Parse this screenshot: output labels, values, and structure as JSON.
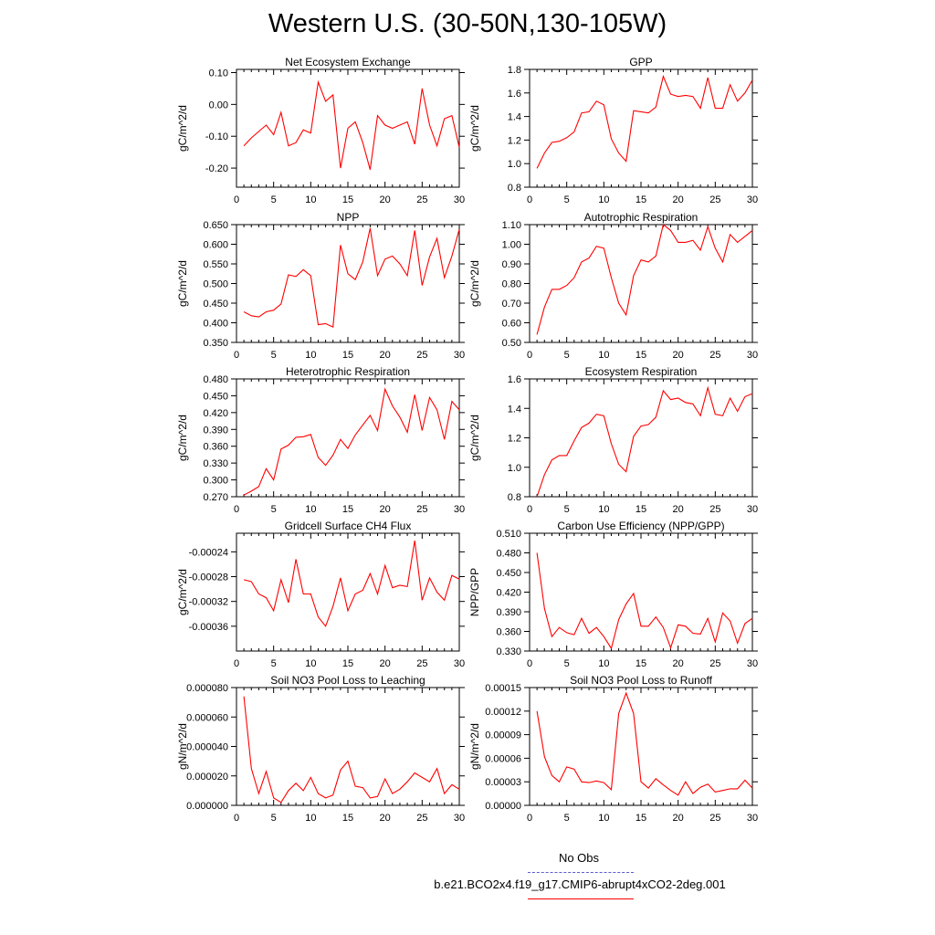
{
  "page": {
    "title": "Western U.S. (30-50N,130-105W)"
  },
  "legend": {
    "obs_label": "No Obs",
    "case_label": "b.e21.BCO2x4.f19_g17.CMIP6-abrupt4xCO2-2deg.001",
    "obs_color": "#5a5acd",
    "case_color": "#ff0000"
  },
  "chart_data": [
    {
      "type": "line",
      "title": "Net Ecosystem Exchange",
      "ylabel": "gC/m^2/d",
      "xlim": [
        0,
        30
      ],
      "ylim": [
        -0.26,
        0.11
      ],
      "yticks": [
        "0.10",
        "0.00",
        "-0.10",
        "-0.20"
      ],
      "xticks": [
        "0",
        "5",
        "10",
        "15",
        "20",
        "25",
        "30"
      ],
      "x": [
        1,
        2,
        3,
        4,
        5,
        6,
        7,
        8,
        9,
        10,
        11,
        12,
        13,
        14,
        15,
        16,
        17,
        18,
        19,
        20,
        21,
        22,
        23,
        24,
        25,
        26,
        27,
        28,
        29,
        30
      ],
      "series": [
        {
          "color": "#ff0000",
          "values": [
            -0.13,
            -0.105,
            -0.085,
            -0.065,
            -0.095,
            -0.025,
            -0.13,
            -0.12,
            -0.08,
            -0.09,
            0.07,
            0.01,
            0.03,
            -0.2,
            -0.075,
            -0.055,
            -0.12,
            -0.205,
            -0.035,
            -0.065,
            -0.075,
            -0.065,
            -0.055,
            -0.125,
            0.05,
            -0.065,
            -0.13,
            -0.045,
            -0.035,
            -0.135
          ]
        }
      ]
    },
    {
      "type": "line",
      "title": "GPP",
      "ylabel": "gC/m^2/d",
      "xlim": [
        0,
        30
      ],
      "ylim": [
        0.8,
        1.8
      ],
      "yticks": [
        "1.8",
        "1.6",
        "1.4",
        "1.2",
        "1.0",
        "0.8"
      ],
      "xticks": [
        "0",
        "5",
        "10",
        "15",
        "20",
        "25",
        "30"
      ],
      "x": [
        1,
        2,
        3,
        4,
        5,
        6,
        7,
        8,
        9,
        10,
        11,
        12,
        13,
        14,
        15,
        16,
        17,
        18,
        19,
        20,
        21,
        22,
        23,
        24,
        25,
        26,
        27,
        28,
        29,
        30
      ],
      "series": [
        {
          "color": "#ff0000",
          "values": [
            0.96,
            1.09,
            1.18,
            1.19,
            1.22,
            1.27,
            1.43,
            1.44,
            1.53,
            1.5,
            1.21,
            1.09,
            1.02,
            1.45,
            1.44,
            1.43,
            1.48,
            1.74,
            1.59,
            1.57,
            1.58,
            1.57,
            1.47,
            1.73,
            1.47,
            1.47,
            1.67,
            1.53,
            1.6,
            1.71
          ]
        }
      ]
    },
    {
      "type": "line",
      "title": "NPP",
      "ylabel": "gC/m^2/d",
      "xlim": [
        0,
        30
      ],
      "ylim": [
        0.35,
        0.65
      ],
      "yticks": [
        "0.650",
        "0.600",
        "0.550",
        "0.500",
        "0.450",
        "0.400",
        "0.350"
      ],
      "xticks": [
        "0",
        "5",
        "10",
        "15",
        "20",
        "25",
        "30"
      ],
      "x": [
        1,
        2,
        3,
        4,
        5,
        6,
        7,
        8,
        9,
        10,
        11,
        12,
        13,
        14,
        15,
        16,
        17,
        18,
        19,
        20,
        21,
        22,
        23,
        24,
        25,
        26,
        27,
        28,
        29,
        30
      ],
      "series": [
        {
          "color": "#ff0000",
          "values": [
            0.428,
            0.418,
            0.415,
            0.428,
            0.432,
            0.448,
            0.522,
            0.518,
            0.535,
            0.52,
            0.395,
            0.398,
            0.389,
            0.598,
            0.525,
            0.51,
            0.555,
            0.641,
            0.52,
            0.562,
            0.57,
            0.55,
            0.52,
            0.635,
            0.495,
            0.568,
            0.615,
            0.515,
            0.57,
            0.638
          ]
        }
      ]
    },
    {
      "type": "line",
      "title": "Autotrophic Respiration",
      "ylabel": "gC/m^2/d",
      "xlim": [
        0,
        30
      ],
      "ylim": [
        0.5,
        1.1
      ],
      "yticks": [
        "1.10",
        "1.00",
        "0.90",
        "0.80",
        "0.70",
        "0.60",
        "0.50"
      ],
      "xticks": [
        "0",
        "5",
        "10",
        "15",
        "20",
        "25",
        "30"
      ],
      "x": [
        1,
        2,
        3,
        4,
        5,
        6,
        7,
        8,
        9,
        10,
        11,
        12,
        13,
        14,
        15,
        16,
        17,
        18,
        19,
        20,
        21,
        22,
        23,
        24,
        25,
        26,
        27,
        28,
        29,
        30
      ],
      "series": [
        {
          "color": "#ff0000",
          "values": [
            0.54,
            0.68,
            0.77,
            0.77,
            0.79,
            0.83,
            0.91,
            0.93,
            0.99,
            0.98,
            0.83,
            0.7,
            0.64,
            0.84,
            0.92,
            0.91,
            0.94,
            1.1,
            1.07,
            1.01,
            1.01,
            1.02,
            0.97,
            1.09,
            0.98,
            0.91,
            1.05,
            1.01,
            1.04,
            1.07
          ]
        }
      ]
    },
    {
      "type": "line",
      "title": "Heterotrophic Respiration",
      "ylabel": "gC/m^2/d",
      "xlim": [
        0,
        30
      ],
      "ylim": [
        0.27,
        0.48
      ],
      "yticks": [
        "0.480",
        "0.450",
        "0.420",
        "0.390",
        "0.360",
        "0.330",
        "0.300",
        "0.270"
      ],
      "xticks": [
        "0",
        "5",
        "10",
        "15",
        "20",
        "25",
        "30"
      ],
      "x": [
        1,
        2,
        3,
        4,
        5,
        6,
        7,
        8,
        9,
        10,
        11,
        12,
        13,
        14,
        15,
        16,
        17,
        18,
        19,
        20,
        21,
        22,
        23,
        24,
        25,
        26,
        27,
        28,
        29,
        30
      ],
      "series": [
        {
          "color": "#ff0000",
          "values": [
            0.273,
            0.28,
            0.288,
            0.32,
            0.3,
            0.355,
            0.362,
            0.376,
            0.377,
            0.381,
            0.34,
            0.326,
            0.344,
            0.372,
            0.356,
            0.38,
            0.398,
            0.415,
            0.388,
            0.462,
            0.432,
            0.412,
            0.385,
            0.452,
            0.388,
            0.447,
            0.425,
            0.372,
            0.44,
            0.425
          ]
        }
      ]
    },
    {
      "type": "line",
      "title": "Ecosystem Respiration",
      "ylabel": "gC/m^2/d",
      "xlim": [
        0,
        30
      ],
      "ylim": [
        0.8,
        1.6
      ],
      "yticks": [
        "1.6",
        "1.4",
        "1.2",
        "1.0",
        "0.8"
      ],
      "xticks": [
        "0",
        "5",
        "10",
        "15",
        "20",
        "25",
        "30"
      ],
      "x": [
        1,
        2,
        3,
        4,
        5,
        6,
        7,
        8,
        9,
        10,
        11,
        12,
        13,
        14,
        15,
        16,
        17,
        18,
        19,
        20,
        21,
        22,
        23,
        24,
        25,
        26,
        27,
        28,
        29,
        30
      ],
      "series": [
        {
          "color": "#ff0000",
          "values": [
            0.8,
            0.95,
            1.05,
            1.08,
            1.08,
            1.18,
            1.27,
            1.3,
            1.36,
            1.35,
            1.16,
            1.02,
            0.97,
            1.21,
            1.28,
            1.29,
            1.34,
            1.52,
            1.46,
            1.47,
            1.44,
            1.43,
            1.35,
            1.54,
            1.36,
            1.35,
            1.47,
            1.38,
            1.48,
            1.5
          ]
        }
      ]
    },
    {
      "type": "line",
      "title": "Gridcell Surface CH4 Flux",
      "ylabel": "gC/m^2/d",
      "xlim": [
        0,
        30
      ],
      "ylim": [
        -0.0004,
        -0.00021
      ],
      "yticks": [
        "-0.00024",
        "-0.00028",
        "-0.00032",
        "-0.00036"
      ],
      "xticks": [
        "0",
        "5",
        "10",
        "15",
        "20",
        "25",
        "30"
      ],
      "x": [
        1,
        2,
        3,
        4,
        5,
        6,
        7,
        8,
        9,
        10,
        11,
        12,
        13,
        14,
        15,
        16,
        17,
        18,
        19,
        20,
        21,
        22,
        23,
        24,
        25,
        26,
        27,
        28,
        29,
        30
      ],
      "series": [
        {
          "color": "#ff0000",
          "values": [
            -0.000285,
            -0.000288,
            -0.000308,
            -0.000314,
            -0.000335,
            -0.000285,
            -0.000322,
            -0.000252,
            -0.000308,
            -0.000308,
            -0.000345,
            -0.00036,
            -0.000328,
            -0.000282,
            -0.000335,
            -0.000308,
            -0.000302,
            -0.000275,
            -0.000308,
            -0.000262,
            -0.000298,
            -0.000294,
            -0.000296,
            -0.000222,
            -0.000318,
            -0.000282,
            -0.000305,
            -0.000318,
            -0.000278,
            -0.000284
          ]
        }
      ]
    },
    {
      "type": "line",
      "title": "Carbon Use Efficiency (NPP/GPP)",
      "ylabel": "NPP/GPP",
      "xlim": [
        0,
        30
      ],
      "ylim": [
        0.33,
        0.51
      ],
      "yticks": [
        "0.510",
        "0.480",
        "0.450",
        "0.420",
        "0.390",
        "0.360",
        "0.330"
      ],
      "xticks": [
        "0",
        "5",
        "10",
        "15",
        "20",
        "25",
        "30"
      ],
      "x": [
        1,
        2,
        3,
        4,
        5,
        6,
        7,
        8,
        9,
        10,
        11,
        12,
        13,
        14,
        15,
        16,
        17,
        18,
        19,
        20,
        21,
        22,
        23,
        24,
        25,
        26,
        27,
        28,
        29,
        30
      ],
      "series": [
        {
          "color": "#ff0000",
          "values": [
            0.48,
            0.395,
            0.352,
            0.366,
            0.358,
            0.355,
            0.38,
            0.357,
            0.366,
            0.352,
            0.334,
            0.378,
            0.402,
            0.418,
            0.368,
            0.368,
            0.382,
            0.366,
            0.335,
            0.37,
            0.368,
            0.357,
            0.356,
            0.38,
            0.344,
            0.388,
            0.376,
            0.342,
            0.372,
            0.38
          ]
        }
      ]
    },
    {
      "type": "line",
      "title": "Soil NO3 Pool Loss to Leaching",
      "ylabel": "gN/m^2/d",
      "xlim": [
        0,
        30
      ],
      "ylim": [
        0,
        8e-05
      ],
      "yticks": [
        "0.000080",
        "0.000060",
        "0.000040",
        "0.000020",
        "0.000000"
      ],
      "xticks": [
        "0",
        "5",
        "10",
        "15",
        "20",
        "25",
        "30"
      ],
      "x": [
        1,
        2,
        3,
        4,
        5,
        6,
        7,
        8,
        9,
        10,
        11,
        12,
        13,
        14,
        15,
        16,
        17,
        18,
        19,
        20,
        21,
        22,
        23,
        24,
        25,
        26,
        27,
        28,
        29,
        30
      ],
      "series": [
        {
          "color": "#ff0000",
          "values": [
            7.4e-05,
            2.5e-05,
            8e-06,
            2.3e-05,
            5e-06,
            2e-06,
            1e-05,
            1.5e-05,
            1e-05,
            1.9e-05,
            8e-06,
            5e-06,
            7e-06,
            2.4e-05,
            3e-05,
            1.3e-05,
            1.2e-05,
            5e-06,
            6e-06,
            1.8e-05,
            8e-06,
            1.1e-05,
            1.6e-05,
            2.2e-05,
            1.9e-05,
            1.6e-05,
            2.5e-05,
            8e-06,
            1.4e-05,
            1.1e-05
          ]
        }
      ]
    },
    {
      "type": "line",
      "title": "Soil NO3 Pool Loss to Runoff",
      "ylabel": "gN/m^2/d",
      "xlim": [
        0,
        30
      ],
      "ylim": [
        0,
        0.00015
      ],
      "yticks": [
        "0.00015",
        "0.00012",
        "0.00009",
        "0.00006",
        "0.00003",
        "0.00000"
      ],
      "xticks": [
        "0",
        "5",
        "10",
        "15",
        "20",
        "25",
        "30"
      ],
      "x": [
        1,
        2,
        3,
        4,
        5,
        6,
        7,
        8,
        9,
        10,
        11,
        12,
        13,
        14,
        15,
        16,
        17,
        18,
        19,
        20,
        21,
        22,
        23,
        24,
        25,
        26,
        27,
        28,
        29,
        30
      ],
      "series": [
        {
          "color": "#ff0000",
          "values": [
            0.00012,
            6.2e-05,
            3.8e-05,
            3e-05,
            4.9e-05,
            4.6e-05,
            3e-05,
            2.9e-05,
            3.1e-05,
            2.9e-05,
            2e-05,
            0.000117,
            0.000143,
            0.000117,
            3e-05,
            2.2e-05,
            3.4e-05,
            2.6e-05,
            1.9e-05,
            1.3e-05,
            3e-05,
            1.5e-05,
            2.3e-05,
            2.7e-05,
            1.7e-05,
            1.9e-05,
            2.1e-05,
            2.1e-05,
            3.2e-05,
            2.2e-05
          ]
        }
      ]
    }
  ]
}
